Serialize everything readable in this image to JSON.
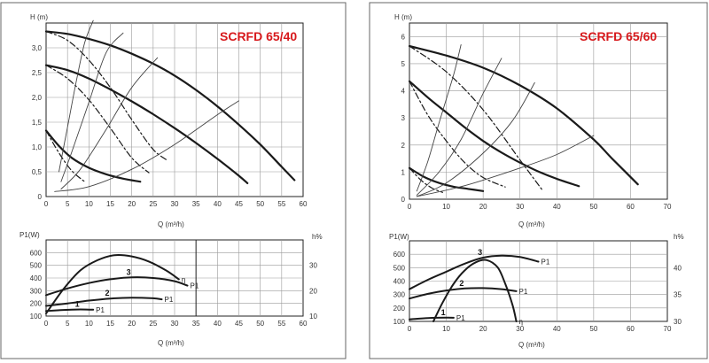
{
  "chart_data": [
    {
      "type": "line",
      "title": "SCRFD 65/40",
      "ylabel": "H (m)",
      "xlabel": "Q (m³/h)",
      "xlim": [
        0,
        60
      ],
      "ylim": [
        0,
        3.5
      ],
      "xticks": [
        0,
        5,
        10,
        15,
        20,
        25,
        30,
        35,
        40,
        45,
        50,
        55,
        60
      ],
      "yticks": [
        "0",
        "0,5",
        "1,0",
        "1,5",
        "2,0",
        "2,5",
        "3,0"
      ],
      "ytick_values": [
        0,
        0.5,
        1.0,
        1.5,
        2.0,
        2.5,
        3.0
      ],
      "grid": true,
      "series": [
        {
          "style": "solid",
          "x": [
            0,
            5,
            10,
            15,
            20,
            25,
            30,
            35,
            40,
            45,
            50,
            55,
            58
          ],
          "y": [
            3.33,
            3.28,
            3.18,
            3.05,
            2.88,
            2.68,
            2.44,
            2.15,
            1.82,
            1.45,
            1.05,
            0.6,
            0.33
          ]
        },
        {
          "style": "solid",
          "x": [
            0,
            5,
            10,
            15,
            20,
            25,
            30,
            35,
            40,
            45,
            47
          ],
          "y": [
            2.65,
            2.55,
            2.38,
            2.16,
            1.92,
            1.66,
            1.38,
            1.08,
            0.76,
            0.42,
            0.27
          ]
        },
        {
          "style": "solid",
          "x": [
            0,
            3,
            6,
            10,
            14,
            18,
            22
          ],
          "y": [
            1.33,
            1.02,
            0.78,
            0.58,
            0.45,
            0.36,
            0.3
          ]
        },
        {
          "style": "dashdot",
          "x": [
            0,
            5,
            10,
            15,
            20,
            25,
            28.5
          ],
          "y": [
            3.33,
            3.15,
            2.75,
            2.2,
            1.55,
            0.95,
            0.72
          ]
        },
        {
          "style": "dashdot",
          "x": [
            0,
            5,
            10,
            15,
            20,
            24
          ],
          "y": [
            2.65,
            2.38,
            1.95,
            1.38,
            0.78,
            0.48
          ]
        },
        {
          "style": "dashdot",
          "x": [
            0,
            3,
            6,
            9
          ],
          "y": [
            1.33,
            0.88,
            0.52,
            0.3
          ]
        },
        {
          "style": "thin",
          "x": [
            3,
            5,
            7,
            9,
            11
          ],
          "y": [
            0.5,
            1.4,
            2.3,
            3.1,
            3.55
          ]
        },
        {
          "style": "thin",
          "x": [
            3.5,
            6,
            10,
            14,
            18
          ],
          "y": [
            0.3,
            0.9,
            1.9,
            2.9,
            3.3
          ]
        },
        {
          "style": "thin",
          "x": [
            3.5,
            8,
            14,
            20,
            26
          ],
          "y": [
            0.15,
            0.55,
            1.35,
            2.2,
            2.8
          ]
        },
        {
          "style": "thin",
          "x": [
            2,
            10,
            20,
            30,
            40,
            45
          ],
          "y": [
            0.1,
            0.2,
            0.55,
            1.05,
            1.65,
            1.93
          ]
        }
      ]
    },
    {
      "type": "line",
      "ylabel": "P1(W)",
      "y2label": "h%",
      "xlabel": "Q (m³/h)",
      "xlim": [
        0,
        60
      ],
      "ylim": [
        100,
        700
      ],
      "y2lim": [
        10,
        40
      ],
      "xticks": [
        0,
        5,
        10,
        15,
        20,
        25,
        30,
        35,
        40,
        45,
        50,
        55,
        60
      ],
      "yticks": [
        100,
        200,
        300,
        400,
        500,
        600
      ],
      "y2ticks": [
        10,
        20,
        30
      ],
      "grid": true,
      "series": [
        {
          "name": "η",
          "axis": "right",
          "x": [
            0,
            4,
            8,
            12,
            16,
            20,
            24,
            28,
            31
          ],
          "y": [
            11,
            20.5,
            28,
            32,
            34,
            33.5,
            31.5,
            28,
            24.5
          ]
        },
        {
          "label": "3",
          "name": "P1",
          "x": [
            0,
            5,
            10,
            15,
            20,
            25,
            30,
            33
          ],
          "y": [
            265,
            318,
            360,
            390,
            405,
            400,
            375,
            340
          ]
        },
        {
          "label": "2",
          "name": "P1",
          "x": [
            0,
            5,
            10,
            15,
            20,
            25,
            27
          ],
          "y": [
            180,
            200,
            222,
            238,
            245,
            240,
            232
          ]
        },
        {
          "label": "1",
          "name": "P1",
          "x": [
            0,
            4,
            8,
            11
          ],
          "y": [
            140,
            148,
            152,
            150
          ]
        }
      ],
      "divider_x": 35
    },
    {
      "type": "line",
      "title": "SCRFD 65/60",
      "ylabel": "H (m)",
      "xlabel": "Q (m³/h)",
      "xlim": [
        0,
        70
      ],
      "ylim": [
        0,
        6.5
      ],
      "xticks": [
        0,
        10,
        20,
        30,
        40,
        50,
        60,
        70
      ],
      "yticks": [
        "0",
        "1",
        "2",
        "3",
        "4",
        "5",
        "6"
      ],
      "ytick_values": [
        0,
        1,
        2,
        3,
        4,
        5,
        6
      ],
      "grid": true,
      "series": [
        {
          "style": "solid",
          "x": [
            0,
            10,
            20,
            30,
            40,
            50,
            55,
            62
          ],
          "y": [
            5.65,
            5.3,
            4.85,
            4.2,
            3.35,
            2.2,
            1.5,
            0.55
          ]
        },
        {
          "style": "solid",
          "x": [
            0,
            5,
            10,
            15,
            20,
            25,
            30,
            35,
            40,
            46
          ],
          "y": [
            4.35,
            3.75,
            3.2,
            2.65,
            2.15,
            1.72,
            1.35,
            1.02,
            0.75,
            0.48
          ]
        },
        {
          "style": "solid",
          "x": [
            0,
            4,
            8,
            12,
            16,
            20
          ],
          "y": [
            1.15,
            0.82,
            0.6,
            0.46,
            0.38,
            0.3
          ]
        },
        {
          "style": "dashdot",
          "x": [
            0,
            10,
            20,
            30,
            36
          ],
          "y": [
            5.65,
            4.7,
            3.3,
            1.45,
            0.35
          ]
        },
        {
          "style": "dashdot",
          "x": [
            0,
            5,
            10,
            15,
            20,
            26
          ],
          "y": [
            4.35,
            3.1,
            2.15,
            1.35,
            0.8,
            0.45
          ]
        },
        {
          "style": "dashdot",
          "x": [
            0,
            3,
            6,
            9
          ],
          "y": [
            1.15,
            0.72,
            0.42,
            0.25
          ]
        },
        {
          "style": "thin",
          "x": [
            2,
            5,
            8,
            12,
            14
          ],
          "y": [
            0.3,
            1.4,
            2.8,
            4.6,
            5.7
          ]
        },
        {
          "style": "thin",
          "x": [
            2,
            8,
            14,
            20,
            25
          ],
          "y": [
            0.15,
            1.0,
            2.2,
            3.9,
            5.2
          ]
        },
        {
          "style": "thin",
          "x": [
            2,
            10,
            20,
            28,
            34
          ],
          "y": [
            0.1,
            0.6,
            1.7,
            2.9,
            4.3
          ]
        },
        {
          "style": "thin",
          "x": [
            2,
            15,
            30,
            40,
            50
          ],
          "y": [
            0.1,
            0.5,
            1.15,
            1.65,
            2.35
          ]
        }
      ]
    },
    {
      "type": "line",
      "ylabel": "P1(W)",
      "y2label": "h%",
      "xlabel": "Q (m³/h)",
      "xlim": [
        0,
        70
      ],
      "ylim": [
        100,
        700
      ],
      "y2lim": [
        30,
        45
      ],
      "xticks": [
        0,
        10,
        20,
        30,
        40,
        50,
        60,
        70
      ],
      "yticks": [
        100,
        200,
        300,
        400,
        500,
        600
      ],
      "y2ticks": [
        30,
        35,
        40
      ],
      "grid": true,
      "series": [
        {
          "label": "3",
          "name": "P1",
          "x": [
            0,
            5,
            10,
            15,
            20,
            25,
            30,
            35
          ],
          "y": [
            340,
            410,
            470,
            530,
            575,
            590,
            580,
            545
          ]
        },
        {
          "label": "2",
          "name": "P1",
          "x": [
            0,
            5,
            10,
            15,
            20,
            25,
            29
          ],
          "y": [
            270,
            305,
            330,
            345,
            348,
            340,
            325
          ]
        },
        {
          "label": "1",
          "name": "P1",
          "x": [
            0,
            5,
            10,
            12
          ],
          "y": [
            115,
            125,
            128,
            127
          ]
        },
        {
          "name": "η",
          "axis": "right",
          "x": [
            6.5,
            9,
            12,
            15,
            18,
            21,
            24,
            26,
            28,
            29
          ],
          "y": [
            30,
            33.5,
            37,
            39.5,
            41,
            41.4,
            40,
            37,
            33,
            30
          ]
        }
      ]
    }
  ]
}
